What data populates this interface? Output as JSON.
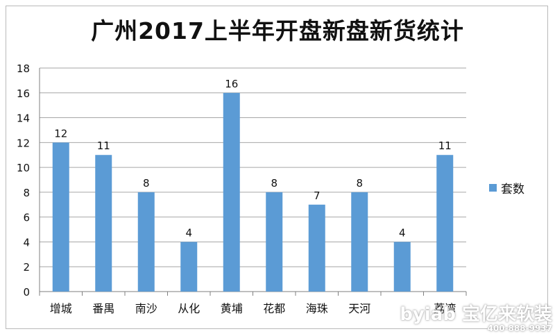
{
  "chart_data": {
    "type": "bar",
    "title": "广州2017上半年开盘新盘新货统计",
    "categories": [
      "增城",
      "番禺",
      "南沙",
      "从化",
      "黄埔",
      "花都",
      "海珠",
      "天河",
      "",
      "荔湾"
    ],
    "series": [
      {
        "name": "套数",
        "values": [
          12,
          11,
          8,
          4,
          16,
          8,
          7,
          8,
          4,
          11
        ]
      }
    ],
    "ylim": [
      0,
      18
    ],
    "yticks": [
      0,
      2,
      4,
      6,
      8,
      10,
      12,
      14,
      16,
      18
    ],
    "data_labels": true,
    "grid": true,
    "legend_position": "right",
    "bar_color": "#5b9bd5"
  },
  "watermark": {
    "brand": "byiab 宝亿来软装",
    "phone": "400-888-9937"
  }
}
